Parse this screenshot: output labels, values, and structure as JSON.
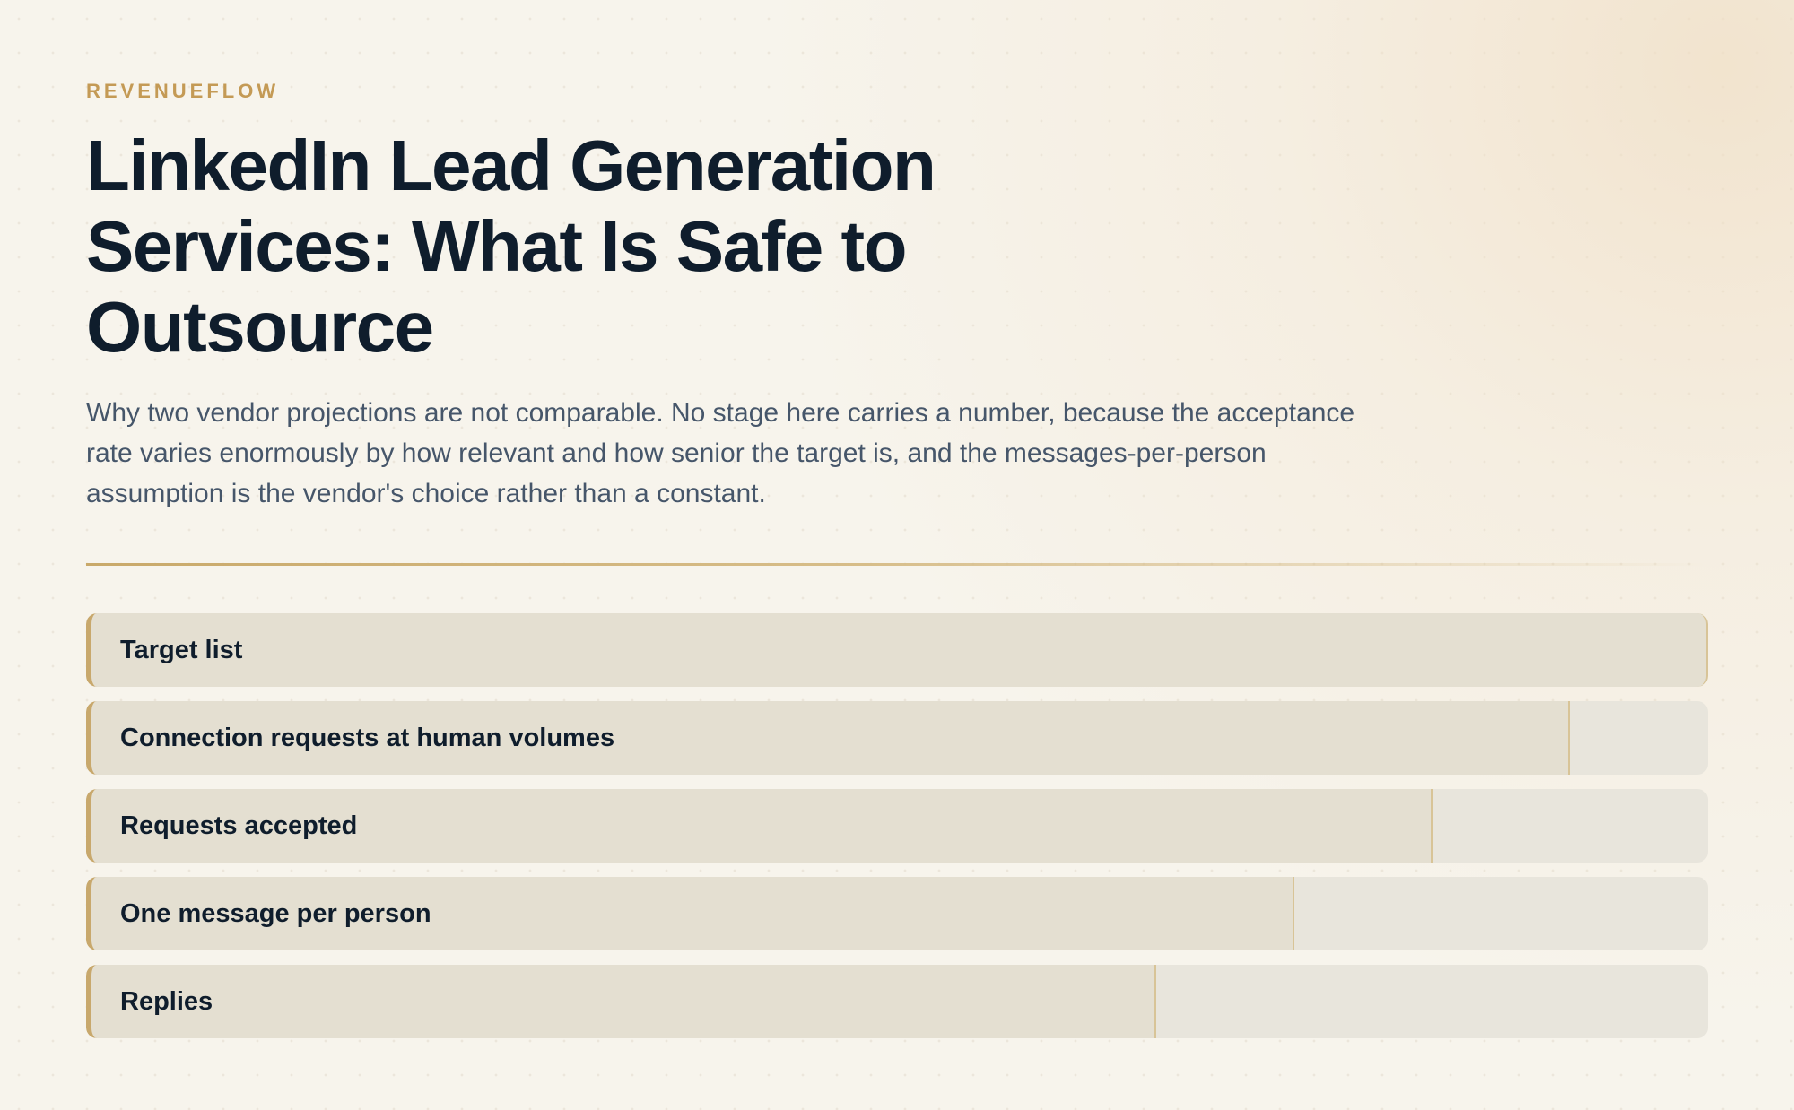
{
  "brand": "REVENUEFLOW",
  "title": "LinkedIn Lead Generation Services: What Is Safe to Outsource",
  "subtitle": "Why two vendor projections are not comparable. No stage here carries a number, because the acceptance rate varies enormously by how relevant and how senior the target is, and the messages-per-person assumption is the vendor's choice rather than a constant.",
  "colors": {
    "accent": "#c49a55",
    "title": "#0f1d2c",
    "body": "#46566a",
    "stage_fill": "#e4dfd1",
    "stage_track": "#e8e5dc",
    "stage_edge": "#c8a86c"
  },
  "chart_data": {
    "type": "bar",
    "orientation": "horizontal",
    "title": "",
    "xlabel": "",
    "ylabel": "",
    "xlim": [
      0,
      100
    ],
    "categories": [
      "Target list",
      "Connection requests at human volumes",
      "Requests accepted",
      "One message per person",
      "Replies"
    ],
    "values": [
      100,
      91.5,
      83,
      74.5,
      66
    ],
    "value_labels": false,
    "grid": false,
    "legend": "none"
  }
}
